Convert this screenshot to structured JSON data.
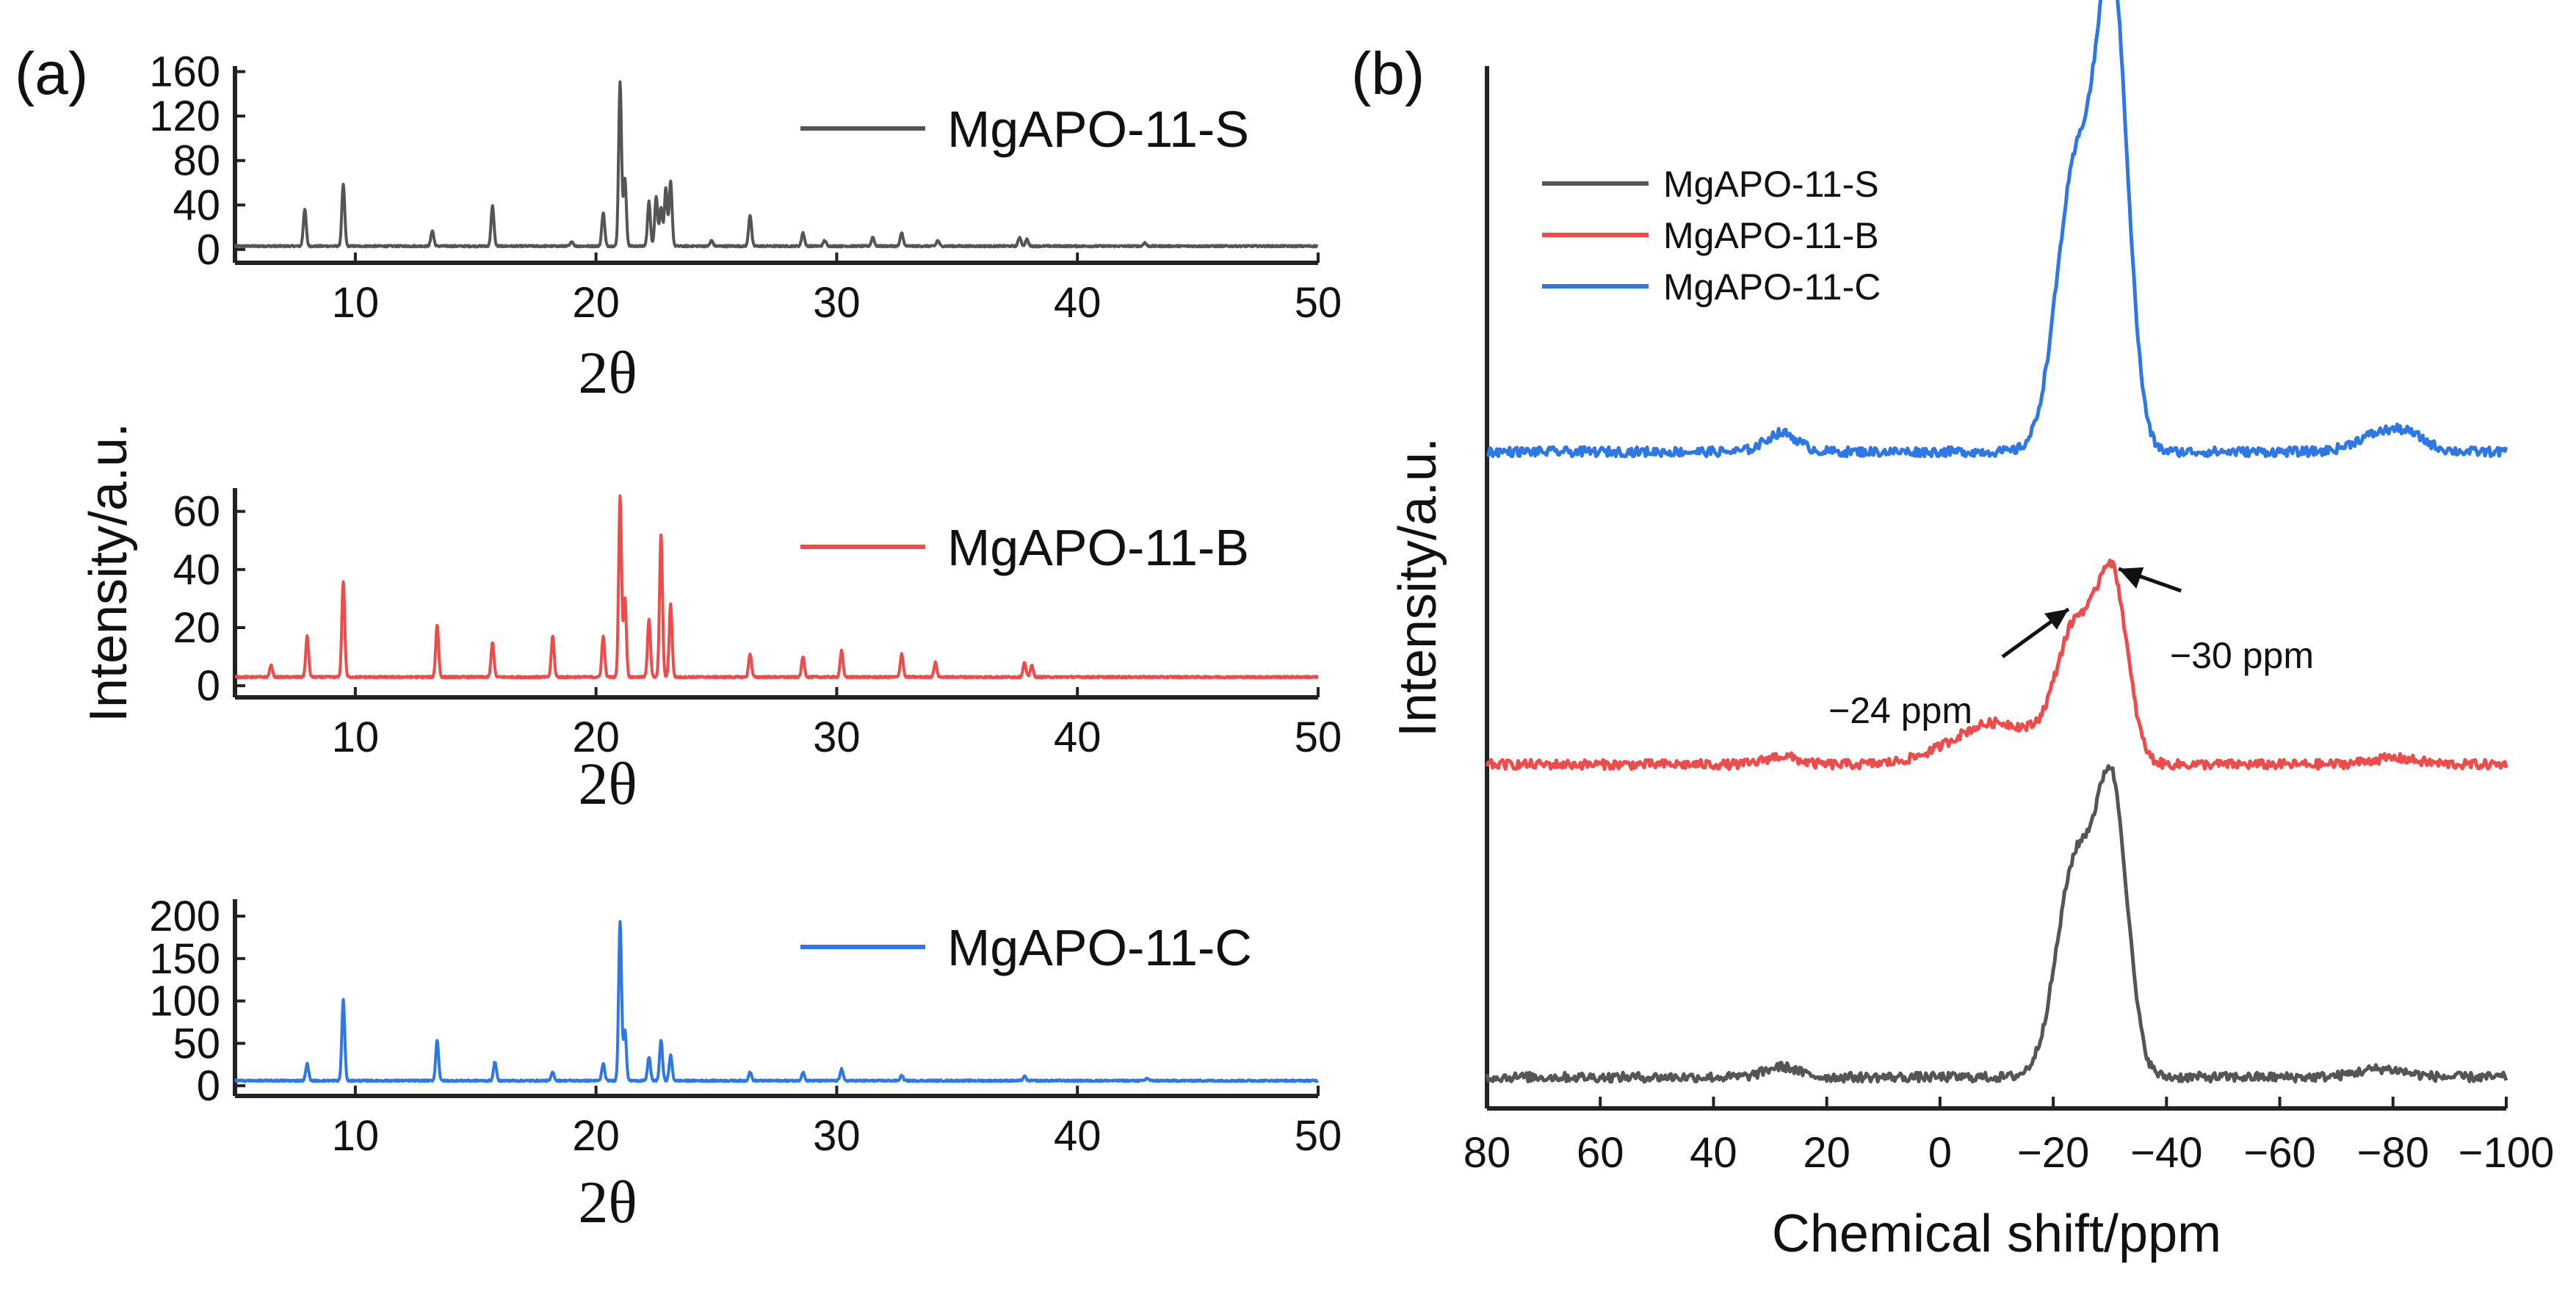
{
  "figure": {
    "panel_a_label": "(a)",
    "panel_b_label": "(b)",
    "panel_a_ylabel": "Intensity/a.u."
  },
  "colors": {
    "S": "#555555",
    "B": "#ee4b4b",
    "C": "#2e78e6"
  },
  "chart_data": [
    {
      "id": "xrd-s",
      "type": "line",
      "title": "",
      "xlabel": "2θ",
      "ylabel": "",
      "xlim": [
        5,
        50
      ],
      "ylim": [
        -12,
        165
      ],
      "xticks": [
        10,
        20,
        30,
        40,
        50
      ],
      "yticks": [
        0,
        40,
        80,
        120,
        160
      ],
      "grid": false,
      "legend": "top-right",
      "series": [
        {
          "name": "MgAPO-11-S",
          "color": "#555555",
          "baseline": 3,
          "peaks": [
            [
              7.9,
              33
            ],
            [
              9.5,
              55
            ],
            [
              13.2,
              14
            ],
            [
              15.7,
              36
            ],
            [
              19.0,
              4
            ],
            [
              20.3,
              30
            ],
            [
              21.0,
              147
            ],
            [
              21.2,
              60
            ],
            [
              22.2,
              40
            ],
            [
              22.5,
              45
            ],
            [
              22.7,
              35
            ],
            [
              22.9,
              52
            ],
            [
              23.1,
              58
            ],
            [
              24.8,
              5
            ],
            [
              26.4,
              28
            ],
            [
              28.6,
              12
            ],
            [
              29.5,
              5
            ],
            [
              31.5,
              8
            ],
            [
              32.7,
              12
            ],
            [
              34.2,
              5
            ],
            [
              37.6,
              8
            ],
            [
              37.9,
              6
            ],
            [
              42.8,
              3
            ]
          ]
        }
      ]
    },
    {
      "id": "xrd-b",
      "type": "line",
      "title": "",
      "xlabel": "2θ",
      "ylabel": "",
      "xlim": [
        5,
        50
      ],
      "ylim": [
        -4,
        68
      ],
      "xticks": [
        10,
        20,
        30,
        40,
        50
      ],
      "yticks": [
        0,
        20,
        40,
        60
      ],
      "grid": false,
      "legend": "top-right",
      "series": [
        {
          "name": "MgAPO-11-B",
          "color": "#ee4b4b",
          "baseline": 3,
          "peaks": [
            [
              6.5,
              4
            ],
            [
              8.0,
              14
            ],
            [
              9.5,
              33
            ],
            [
              13.4,
              18
            ],
            [
              15.7,
              12
            ],
            [
              18.2,
              14
            ],
            [
              20.3,
              14
            ],
            [
              21.0,
              62
            ],
            [
              21.2,
              27
            ],
            [
              22.2,
              20
            ],
            [
              22.7,
              49
            ],
            [
              23.1,
              25
            ],
            [
              26.4,
              8
            ],
            [
              28.6,
              7
            ],
            [
              30.2,
              9
            ],
            [
              32.7,
              8
            ],
            [
              34.1,
              5
            ],
            [
              37.8,
              5
            ],
            [
              38.1,
              4
            ]
          ]
        }
      ]
    },
    {
      "id": "xrd-c",
      "type": "line",
      "title": "",
      "xlabel": "2θ",
      "ylabel": "",
      "xlim": [
        5,
        50
      ],
      "ylim": [
        -12,
        220
      ],
      "xticks": [
        10,
        20,
        30,
        40,
        50
      ],
      "yticks": [
        0,
        50,
        100,
        150,
        200
      ],
      "grid": false,
      "legend": "top-right",
      "series": [
        {
          "name": "MgAPO-11-C",
          "color": "#2e78e6",
          "baseline": 6,
          "peaks": [
            [
              8.0,
              20
            ],
            [
              9.5,
              95
            ],
            [
              13.4,
              48
            ],
            [
              15.8,
              22
            ],
            [
              18.2,
              10
            ],
            [
              20.3,
              20
            ],
            [
              21.0,
              188
            ],
            [
              21.2,
              60
            ],
            [
              22.2,
              28
            ],
            [
              22.7,
              48
            ],
            [
              23.1,
              30
            ],
            [
              26.4,
              10
            ],
            [
              28.6,
              10
            ],
            [
              30.2,
              14
            ],
            [
              32.7,
              6
            ],
            [
              37.8,
              5
            ],
            [
              42.9,
              3
            ]
          ]
        }
      ]
    },
    {
      "id": "nmr",
      "type": "line",
      "title": "",
      "xlabel": "Chemical shift/ppm",
      "ylabel": "Intensity/a.u.",
      "xlim": [
        80,
        -100
      ],
      "ylim": [
        0,
        100
      ],
      "xticks": [
        80,
        60,
        40,
        20,
        0,
        -20,
        -40,
        -60,
        -80,
        -100
      ],
      "xtick_labels": [
        "80",
        "60",
        "40",
        "20",
        "0",
        "−20",
        "−40",
        "−60",
        "−80",
        "−100"
      ],
      "grid": false,
      "legend": "top-left",
      "annotations": [
        {
          "text": "−24 ppm",
          "x": -24
        },
        {
          "text": "−30 ppm",
          "x": -30
        }
      ],
      "series": [
        {
          "name": "MgAPO-11-S",
          "color": "#555555",
          "offset": 3,
          "peaks": [
            [
              -24,
              20.5,
              4.8
            ],
            [
              -30.5,
              26,
              3.8
            ],
            [
              28,
              1.0,
              4
            ],
            [
              -78,
              0.8,
              6
            ]
          ]
        },
        {
          "name": "MgAPO-11-B",
          "color": "#ee4b4b",
          "offset": 33,
          "peaks": [
            [
              -24,
              12.5,
              4.8
            ],
            [
              -30.5,
              17,
              3.8
            ],
            [
              -10,
              4,
              11
            ],
            [
              28,
              0.8,
              4
            ],
            [
              -80,
              0.6,
              6
            ]
          ]
        },
        {
          "name": "MgAPO-11-C",
          "color": "#2e78e6",
          "offset": 63,
          "peaks": [
            [
              -24,
              27,
              4.8
            ],
            [
              -30.5,
              43,
              3.8
            ],
            [
              28,
              1.8,
              4
            ],
            [
              -76,
              1.2,
              5
            ],
            [
              -82,
              1.8,
              5
            ]
          ]
        }
      ]
    }
  ]
}
